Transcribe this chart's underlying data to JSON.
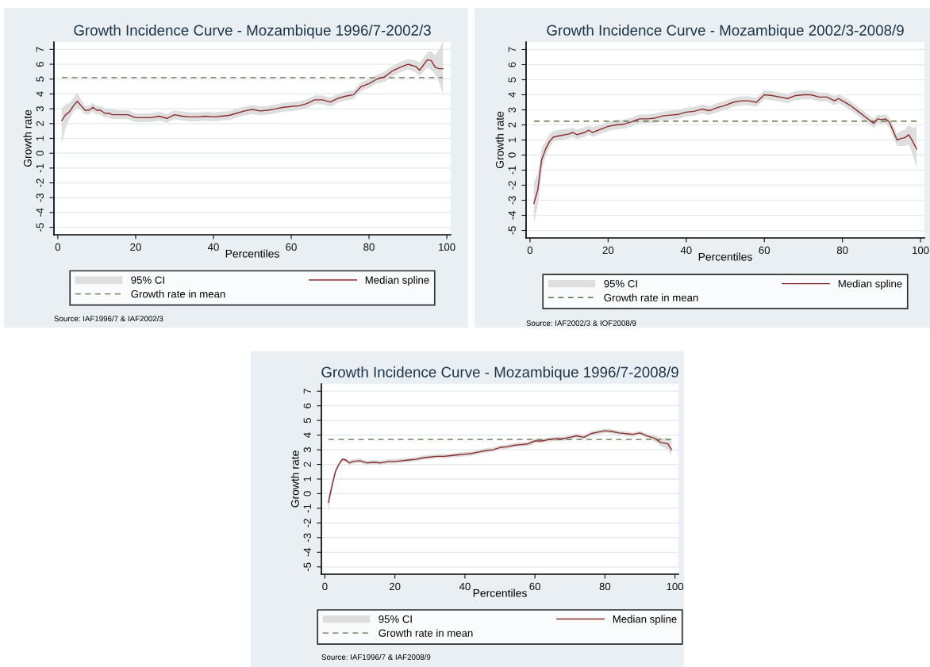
{
  "chart_data": [
    {
      "type": "line",
      "title": "Growth Incidence Curve - Mozambique 1996/7-2002/3",
      "xlabel": "Percentiles",
      "ylabel": "Growth rate",
      "xlim": [
        -1,
        101
      ],
      "xticks": [
        0,
        20,
        40,
        60,
        80,
        100
      ],
      "ylim": [
        -5.5,
        7.5
      ],
      "yticks": [
        -5,
        -4,
        -3,
        -2,
        -1,
        0,
        1,
        2,
        3,
        4,
        5,
        6,
        7
      ],
      "grid": "y",
      "legend": "bottom",
      "series": [
        {
          "name": "Median spline",
          "type": "line",
          "color": "#8b2c2c",
          "x": [
            1,
            2,
            3,
            4,
            5,
            6,
            7,
            8,
            9,
            10,
            11,
            12,
            13,
            14,
            16,
            18,
            20,
            22,
            24,
            26,
            28,
            30,
            32,
            34,
            36,
            38,
            40,
            42,
            44,
            46,
            48,
            50,
            52,
            54,
            56,
            58,
            60,
            62,
            64,
            66,
            68,
            70,
            72,
            74,
            76,
            78,
            80,
            82,
            84,
            86,
            88,
            90,
            92,
            93,
            95,
            96,
            97,
            98,
            99
          ],
          "values": [
            2.2,
            2.6,
            2.8,
            3.2,
            3.5,
            3.2,
            2.9,
            2.9,
            3.1,
            2.9,
            2.9,
            2.7,
            2.7,
            2.6,
            2.6,
            2.6,
            2.4,
            2.4,
            2.4,
            2.5,
            2.35,
            2.6,
            2.5,
            2.45,
            2.45,
            2.5,
            2.45,
            2.5,
            2.55,
            2.7,
            2.85,
            2.95,
            2.85,
            2.9,
            3.0,
            3.1,
            3.15,
            3.2,
            3.35,
            3.6,
            3.6,
            3.45,
            3.7,
            3.85,
            3.95,
            4.5,
            4.7,
            5.0,
            5.15,
            5.55,
            5.8,
            6.0,
            5.85,
            5.6,
            6.3,
            6.25,
            5.8,
            5.7,
            5.7
          ],
          "lower": [
            0.6,
            1.7,
            2.3,
            2.8,
            3.0,
            2.9,
            2.6,
            2.6,
            2.8,
            2.6,
            2.6,
            2.4,
            2.4,
            2.3,
            2.3,
            2.3,
            2.1,
            2.1,
            2.1,
            2.2,
            2.05,
            2.3,
            2.2,
            2.15,
            2.15,
            2.2,
            2.15,
            2.2,
            2.25,
            2.4,
            2.55,
            2.65,
            2.55,
            2.6,
            2.7,
            2.8,
            2.85,
            2.9,
            3.05,
            3.3,
            3.3,
            3.15,
            3.4,
            3.55,
            3.65,
            4.2,
            4.4,
            4.7,
            4.8,
            5.2,
            5.45,
            5.65,
            5.45,
            5.2,
            5.8,
            5.6,
            5.3,
            4.8,
            4.0
          ],
          "upper": [
            3.0,
            3.3,
            3.4,
            3.7,
            4.1,
            3.6,
            3.2,
            3.2,
            3.4,
            3.2,
            3.2,
            3.0,
            3.0,
            2.95,
            2.9,
            2.9,
            2.7,
            2.7,
            2.7,
            2.8,
            2.65,
            2.9,
            2.8,
            2.75,
            2.75,
            2.8,
            2.75,
            2.8,
            2.85,
            3.0,
            3.15,
            3.25,
            3.15,
            3.2,
            3.3,
            3.4,
            3.45,
            3.5,
            3.65,
            3.9,
            3.9,
            3.75,
            4.0,
            4.15,
            4.25,
            4.8,
            5.0,
            5.3,
            5.5,
            5.9,
            6.15,
            6.35,
            6.25,
            6.1,
            6.8,
            6.9,
            6.6,
            7.0,
            7.5
          ]
        }
      ],
      "ref_lines": [
        {
          "axis": "y",
          "value": 5.1,
          "label": "Growth rate in mean",
          "color": "#5b7042",
          "line_style": "dashed"
        }
      ],
      "annotations": [
        "95% CI",
        "Source: IAF1996/7 & IAF2002/3"
      ]
    },
    {
      "type": "line",
      "title": "Growth Incidence Curve - Mozambique 2002/3-2008/9",
      "xlabel": "Percentiles",
      "ylabel": "Growth rate",
      "xlim": [
        -1,
        101
      ],
      "xticks": [
        0,
        20,
        40,
        60,
        80,
        100
      ],
      "ylim": [
        -5.5,
        7.5
      ],
      "yticks": [
        -5,
        -4,
        -3,
        -2,
        -1,
        0,
        1,
        2,
        3,
        4,
        5,
        6,
        7
      ],
      "grid": "y",
      "legend": "bottom",
      "series": [
        {
          "name": "Median spline",
          "type": "line",
          "color": "#8b2c2c",
          "x": [
            1,
            2,
            3,
            4,
            5,
            6,
            8,
            10,
            11,
            12,
            14,
            15,
            16,
            18,
            20,
            22,
            24,
            26,
            28,
            30,
            32,
            34,
            36,
            38,
            40,
            42,
            44,
            46,
            48,
            50,
            52,
            54,
            56,
            58,
            60,
            62,
            64,
            66,
            68,
            70,
            72,
            74,
            76,
            78,
            79,
            80,
            82,
            84,
            86,
            88,
            89,
            90,
            91,
            92,
            93,
            94,
            95,
            96,
            97,
            98,
            99
          ],
          "values": [
            -3.2,
            -2.3,
            -0.3,
            0.4,
            0.9,
            1.2,
            1.3,
            1.4,
            1.5,
            1.35,
            1.5,
            1.65,
            1.5,
            1.7,
            1.9,
            2.0,
            2.05,
            2.2,
            2.4,
            2.4,
            2.45,
            2.6,
            2.65,
            2.7,
            2.85,
            2.9,
            3.05,
            2.95,
            3.15,
            3.3,
            3.5,
            3.6,
            3.6,
            3.5,
            4.0,
            3.95,
            3.85,
            3.75,
            3.95,
            4.0,
            4.0,
            3.85,
            3.85,
            3.6,
            3.75,
            3.6,
            3.3,
            2.9,
            2.5,
            2.1,
            2.4,
            2.35,
            2.4,
            2.2,
            1.6,
            1.0,
            1.1,
            1.15,
            1.35,
            0.9,
            0.4
          ],
          "lower": [
            -4.5,
            -3.3,
            -1.0,
            -0.1,
            0.5,
            0.9,
            1.0,
            1.1,
            1.2,
            1.05,
            1.2,
            1.35,
            1.2,
            1.4,
            1.6,
            1.7,
            1.75,
            1.9,
            2.1,
            2.1,
            2.15,
            2.3,
            2.35,
            2.4,
            2.55,
            2.6,
            2.75,
            2.65,
            2.85,
            3.0,
            3.2,
            3.3,
            3.3,
            3.2,
            3.7,
            3.65,
            3.55,
            3.45,
            3.65,
            3.7,
            3.7,
            3.55,
            3.55,
            3.3,
            3.45,
            3.3,
            3.0,
            2.6,
            2.2,
            1.8,
            2.1,
            2.05,
            2.1,
            1.8,
            1.2,
            0.6,
            0.6,
            0.6,
            0.7,
            0.0,
            -0.8
          ],
          "upper": [
            -1.8,
            -1.2,
            0.5,
            0.9,
            1.4,
            1.6,
            1.7,
            1.75,
            1.8,
            1.7,
            1.85,
            1.95,
            1.85,
            2.0,
            2.2,
            2.3,
            2.35,
            2.5,
            2.7,
            2.7,
            2.75,
            2.9,
            2.95,
            3.0,
            3.15,
            3.2,
            3.35,
            3.25,
            3.45,
            3.6,
            3.8,
            3.9,
            3.9,
            3.8,
            4.3,
            4.25,
            4.15,
            4.05,
            4.25,
            4.3,
            4.3,
            4.15,
            4.15,
            3.9,
            4.05,
            3.9,
            3.6,
            3.2,
            2.8,
            2.4,
            2.7,
            2.65,
            2.7,
            2.5,
            2.0,
            1.4,
            1.6,
            1.7,
            2.0,
            1.8,
            1.9
          ]
        }
      ],
      "ref_lines": [
        {
          "axis": "y",
          "value": 2.25,
          "label": "Growth rate in mean",
          "color": "#5b7042",
          "line_style": "dashed"
        }
      ],
      "annotations": [
        "95% CI",
        "Source: IAF2002/3 & IOF2008/9"
      ]
    },
    {
      "type": "line",
      "title": "Growth Incidence Curve - Mozambique 1996/7-2008/9",
      "xlabel": "Percentiles",
      "ylabel": "Growth rate",
      "xlim": [
        -1,
        101
      ],
      "xticks": [
        0,
        20,
        40,
        60,
        80,
        100
      ],
      "ylim": [
        -5.5,
        7.5
      ],
      "yticks": [
        -5,
        -4,
        -3,
        -2,
        -1,
        0,
        1,
        2,
        3,
        4,
        5,
        6,
        7
      ],
      "grid": "y",
      "legend": "bottom",
      "series": [
        {
          "name": "Median spline",
          "type": "line",
          "color": "#8b2c2c",
          "x": [
            1,
            2,
            3,
            4,
            5,
            6,
            7,
            8,
            10,
            12,
            14,
            16,
            18,
            20,
            22,
            24,
            26,
            28,
            30,
            32,
            34,
            36,
            38,
            40,
            42,
            44,
            46,
            48,
            50,
            52,
            54,
            56,
            58,
            60,
            62,
            64,
            66,
            68,
            70,
            72,
            74,
            76,
            78,
            80,
            82,
            84,
            86,
            88,
            90,
            92,
            94,
            96,
            98,
            99
          ],
          "values": [
            -0.6,
            0.5,
            1.5,
            2.0,
            2.35,
            2.3,
            2.1,
            2.2,
            2.25,
            2.1,
            2.15,
            2.1,
            2.2,
            2.2,
            2.25,
            2.3,
            2.35,
            2.45,
            2.5,
            2.55,
            2.55,
            2.6,
            2.65,
            2.7,
            2.75,
            2.85,
            2.95,
            3.0,
            3.15,
            3.2,
            3.3,
            3.35,
            3.4,
            3.6,
            3.6,
            3.7,
            3.75,
            3.75,
            3.85,
            3.95,
            3.85,
            4.1,
            4.2,
            4.3,
            4.25,
            4.15,
            4.1,
            4.05,
            4.15,
            3.95,
            3.8,
            3.5,
            3.4,
            3.0
          ],
          "lower": [
            -1.3,
            0.2,
            1.3,
            1.85,
            2.2,
            2.15,
            1.95,
            2.05,
            2.1,
            1.95,
            2.0,
            1.95,
            2.05,
            2.05,
            2.1,
            2.15,
            2.2,
            2.3,
            2.35,
            2.4,
            2.4,
            2.45,
            2.5,
            2.55,
            2.6,
            2.7,
            2.8,
            2.85,
            3.0,
            3.05,
            3.15,
            3.2,
            3.25,
            3.45,
            3.45,
            3.55,
            3.6,
            3.6,
            3.7,
            3.8,
            3.7,
            3.95,
            4.05,
            4.15,
            4.1,
            4.0,
            3.95,
            3.9,
            4.0,
            3.8,
            3.6,
            3.25,
            3.0,
            2.6
          ],
          "upper": [
            -0.1,
            0.8,
            1.7,
            2.15,
            2.5,
            2.45,
            2.25,
            2.35,
            2.4,
            2.25,
            2.3,
            2.25,
            2.35,
            2.35,
            2.4,
            2.45,
            2.5,
            2.6,
            2.65,
            2.7,
            2.7,
            2.75,
            2.8,
            2.85,
            2.9,
            3.0,
            3.1,
            3.15,
            3.3,
            3.35,
            3.45,
            3.5,
            3.55,
            3.75,
            3.75,
            3.85,
            3.9,
            3.9,
            4.0,
            4.1,
            4.0,
            4.25,
            4.35,
            4.45,
            4.4,
            4.3,
            4.25,
            4.2,
            4.3,
            4.1,
            4.0,
            3.8,
            3.8,
            3.6
          ]
        }
      ],
      "ref_lines": [
        {
          "axis": "y",
          "value": 3.7,
          "label": "Growth rate in mean",
          "color": "#5b7042",
          "line_style": "dashed"
        }
      ],
      "annotations": [
        "95% CI",
        "Source: IAF1996/7 & IAF2008/9"
      ]
    }
  ]
}
